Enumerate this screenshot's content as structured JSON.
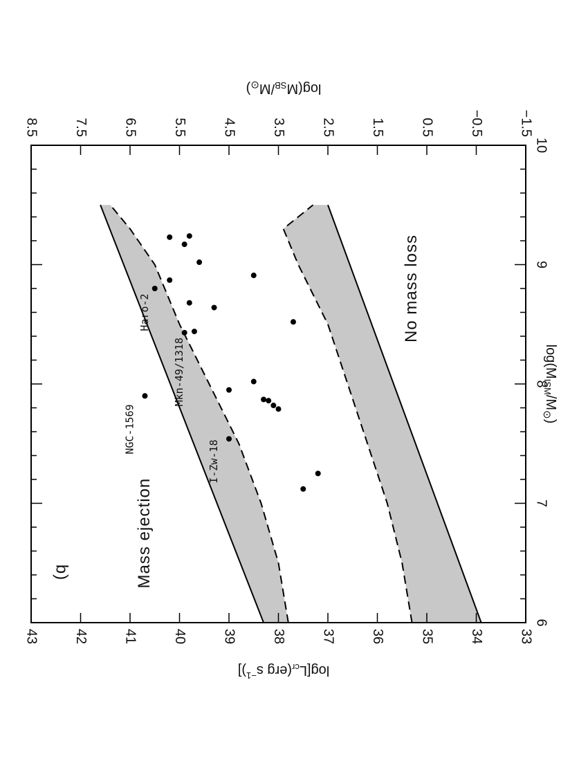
{
  "chart_data": {
    "type": "scatter",
    "panel_label": "b)",
    "orientation": "rotated 90 degrees clockwise",
    "x_axis": {
      "label_main": "log(M",
      "label_sub": "ISM",
      "label_tail": "/M",
      "label_sun": "⊙",
      "label_close": ")",
      "range": [
        6,
        10
      ],
      "major_ticks": [
        6,
        7,
        8,
        9,
        10
      ],
      "minor_step": 0.2
    },
    "y_axis": {
      "label_main": "log[L",
      "label_sub": "cr",
      "label_tail": "(erg  s",
      "label_sup": "−1",
      "label_close": ")]",
      "range": [
        33,
        43
      ],
      "ticks": [
        33,
        34,
        35,
        36,
        37,
        38,
        39,
        40,
        41,
        42,
        43
      ]
    },
    "top_axis": {
      "label_main": "log(M",
      "label_sub": "SB",
      "label_tail": "/M",
      "label_sun": "⊙",
      "label_close": ")",
      "tick_labels": [
        "−1.5",
        "−0.5",
        "0.5",
        "1.5",
        "2.5",
        "3.5",
        "4.5",
        "5.5",
        "6.5",
        "7.5",
        "8.5"
      ],
      "tick_positions_y": [
        33,
        34,
        35,
        36,
        37,
        38,
        39,
        40,
        41,
        42,
        43
      ]
    },
    "upper_band": {
      "solid": [
        [
          6,
          38.3
        ],
        [
          9.5,
          41.6
        ]
      ],
      "dashed": [
        [
          6,
          37.8
        ],
        [
          6.5,
          38.0
        ],
        [
          7,
          38.35
        ],
        [
          7.5,
          38.8
        ],
        [
          8,
          39.4
        ],
        [
          8.5,
          40.0
        ],
        [
          9,
          40.5
        ],
        [
          9.3,
          41.0
        ],
        [
          9.5,
          41.4
        ]
      ]
    },
    "lower_band": {
      "solid": [
        [
          6,
          33.9
        ],
        [
          9.5,
          37.0
        ]
      ],
      "dashed": [
        [
          6,
          35.3
        ],
        [
          6.5,
          35.5
        ],
        [
          7,
          35.8
        ],
        [
          7.5,
          36.2
        ],
        [
          8,
          36.6
        ],
        [
          8.5,
          37.0
        ],
        [
          9,
          37.6
        ],
        [
          9.3,
          37.9
        ],
        [
          9.5,
          37.3
        ]
      ]
    },
    "points": [
      {
        "x": 7.12,
        "y": 37.5
      },
      {
        "x": 7.25,
        "y": 37.2
      },
      {
        "x": 7.54,
        "y": 39.0
      },
      {
        "x": 7.79,
        "y": 38.0
      },
      {
        "x": 7.82,
        "y": 38.1
      },
      {
        "x": 7.86,
        "y": 38.2
      },
      {
        "x": 7.87,
        "y": 38.3
      },
      {
        "x": 7.9,
        "y": 40.7
      },
      {
        "x": 7.95,
        "y": 39.0
      },
      {
        "x": 8.02,
        "y": 38.5
      },
      {
        "x": 8.43,
        "y": 39.9
      },
      {
        "x": 8.44,
        "y": 39.7
      },
      {
        "x": 8.52,
        "y": 37.7
      },
      {
        "x": 8.64,
        "y": 39.3
      },
      {
        "x": 8.68,
        "y": 39.8
      },
      {
        "x": 8.8,
        "y": 40.5
      },
      {
        "x": 8.87,
        "y": 40.2
      },
      {
        "x": 8.91,
        "y": 38.5
      },
      {
        "x": 9.02,
        "y": 39.6
      },
      {
        "x": 9.17,
        "y": 39.9
      },
      {
        "x": 9.23,
        "y": 40.2
      },
      {
        "x": 9.24,
        "y": 39.8
      }
    ],
    "annotations": [
      {
        "text": "Mass ejection",
        "style": "big",
        "x": 6.75,
        "y": 40.7
      },
      {
        "text": "No mass loss",
        "style": "big",
        "x": 8.8,
        "y": 35.3
      },
      {
        "text": "NGC-1569",
        "style": "small",
        "x": 7.62,
        "y": 41.0
      },
      {
        "text": "Mkn-49/1318",
        "style": "small",
        "x": 8.1,
        "y": 40.0
      },
      {
        "text": "Haro-2",
        "style": "small",
        "x": 8.6,
        "y": 40.7
      },
      {
        "text": "I-Zw-18",
        "style": "small",
        "x": 7.35,
        "y": 39.3
      }
    ]
  }
}
